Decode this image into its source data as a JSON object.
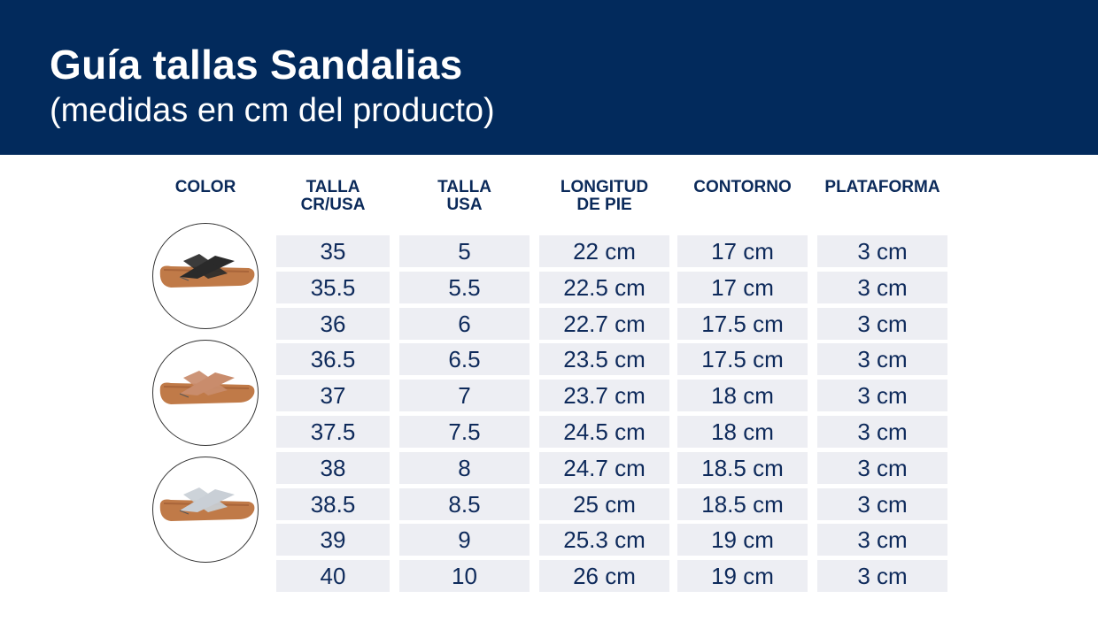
{
  "header": {
    "title": "Guía tallas Sandalias",
    "subtitle": "(medidas en cm del producto)"
  },
  "columns": [
    {
      "line1": "COLOR",
      "line2": ""
    },
    {
      "line1": "TALLA",
      "line2": "CR/USA"
    },
    {
      "line1": "TALLA",
      "line2": "USA"
    },
    {
      "line1": "LONGITUD",
      "line2": "DE PIE"
    },
    {
      "line1": "CONTORNO",
      "line2": ""
    },
    {
      "line1": "PLATAFORMA",
      "line2": ""
    }
  ],
  "colors": [
    {
      "name": "black-sandal",
      "strap": "#2a2a2a"
    },
    {
      "name": "rose-gold-sandal",
      "strap": "#c98c6c"
    },
    {
      "name": "silver-sandal",
      "strap": "#c9cfd6"
    }
  ],
  "rows": [
    [
      "35",
      "5",
      "22 cm",
      "17 cm",
      "3 cm"
    ],
    [
      "35.5",
      "5.5",
      "22.5 cm",
      "17 cm",
      "3 cm"
    ],
    [
      "36",
      "6",
      "22.7 cm",
      "17.5 cm",
      "3 cm"
    ],
    [
      "36.5",
      "6.5",
      "23.5 cm",
      "17.5 cm",
      "3 cm"
    ],
    [
      "37",
      "7",
      "23.7 cm",
      "18 cm",
      "3 cm"
    ],
    [
      "37.5",
      "7.5",
      "24.5 cm",
      "18 cm",
      "3 cm"
    ],
    [
      "38",
      "8",
      "24.7 cm",
      "18.5 cm",
      "3 cm"
    ],
    [
      "38.5",
      "8.5",
      "25 cm",
      "18.5 cm",
      "3 cm"
    ],
    [
      "39",
      "9",
      "25.3 cm",
      "19 cm",
      "3 cm"
    ],
    [
      "40",
      "10",
      "26 cm",
      "19 cm",
      "3 cm"
    ]
  ]
}
